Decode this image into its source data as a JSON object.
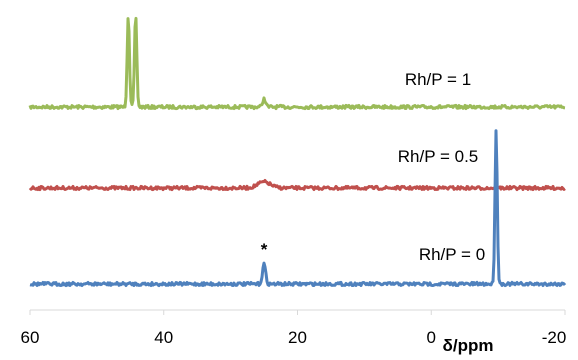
{
  "chart_data": {
    "type": "line",
    "title": "",
    "xlabel": "δ/ppm",
    "ylabel": "",
    "xlim": [
      60,
      -20
    ],
    "x_ticks": [
      "60",
      "40",
      "20",
      "0",
      "-20"
    ],
    "grid": false,
    "legend": "none",
    "annotation": "*",
    "annotation_x": 25,
    "series": [
      {
        "name": "Rh/P = 1",
        "color": "#9bbb59",
        "peaks": [
          {
            "x": 45.3,
            "height": 93
          },
          {
            "x": 44.2,
            "height": 93
          },
          {
            "x": 25.0,
            "height": 8
          }
        ]
      },
      {
        "name": "Rh/P = 0.5",
        "color": "#c0504d",
        "peaks": [
          {
            "x": 25.0,
            "height": 6
          }
        ]
      },
      {
        "name": "Rh/P = 0",
        "color": "#4f81bd",
        "peaks": [
          {
            "x": 25.0,
            "height": 20
          },
          {
            "x": -9.7,
            "height": 153
          }
        ]
      }
    ]
  }
}
